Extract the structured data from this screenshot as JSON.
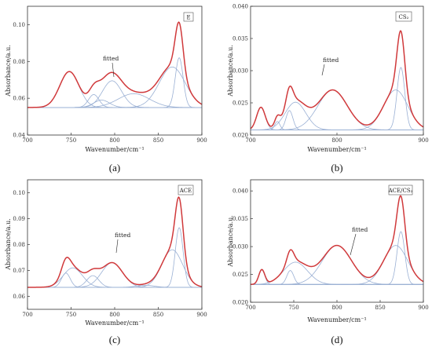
{
  "colors": {
    "fit": "#d0393b",
    "component": "#9ab0d4",
    "baseline": "#8a8a8a",
    "axis": "#333333"
  },
  "chart_data": [
    {
      "type": "line",
      "caption": "(a)",
      "box_label": "E",
      "annotation": "fitted",
      "xlabel": "Wavenumber/cm⁻¹",
      "ylabel": "Absorbance/a.u.",
      "xlim": [
        700,
        900
      ],
      "ylim": [
        0.04,
        0.11
      ],
      "x_ticks": [
        700,
        750,
        800,
        850,
        900
      ],
      "y_ticks": [
        0.04,
        0.06,
        0.08,
        0.1
      ],
      "y_tick_labels": [
        "0.04",
        "0.06",
        "0.08",
        "0.10"
      ],
      "baseline": 0.055,
      "components": [
        {
          "center": 748,
          "height": 0.0195,
          "width": 11
        },
        {
          "center": 776,
          "height": 0.007,
          "width": 6
        },
        {
          "center": 785,
          "height": 0.004,
          "width": 9
        },
        {
          "center": 797,
          "height": 0.0145,
          "width": 11
        },
        {
          "center": 822,
          "height": 0.0075,
          "width": 18
        },
        {
          "center": 866,
          "height": 0.022,
          "width": 15
        },
        {
          "center": 874,
          "height": 0.027,
          "width": 4.5
        }
      ]
    },
    {
      "type": "line",
      "caption": "(b)",
      "box_label": "CS₂",
      "annotation": "fitted",
      "xlabel": "Wavenumber/cm⁻¹",
      "ylabel": "Absorbance/a.u.",
      "xlim": [
        700,
        900
      ],
      "ylim": [
        0.02,
        0.04
      ],
      "x_ticks": [
        700,
        800,
        900
      ],
      "y_ticks": [
        0.02,
        0.025,
        0.03,
        0.035,
        0.04
      ],
      "y_tick_labels": [
        "0.020",
        "0.025",
        "0.030",
        "0.035",
        "0.040"
      ],
      "baseline": 0.0208,
      "components": [
        {
          "center": 712,
          "height": 0.0035,
          "width": 5
        },
        {
          "center": 731,
          "height": 0.0013,
          "width": 3
        },
        {
          "center": 745,
          "height": 0.003,
          "width": 4
        },
        {
          "center": 752,
          "height": 0.0043,
          "width": 12
        },
        {
          "center": 795,
          "height": 0.0062,
          "width": 17
        },
        {
          "center": 868,
          "height": 0.0062,
          "width": 14
        },
        {
          "center": 874,
          "height": 0.0097,
          "width": 4.5
        }
      ]
    },
    {
      "type": "line",
      "caption": "(c)",
      "box_label": "ACE",
      "annotation": "fitted",
      "xlabel": "Wavenumber/cm⁻¹",
      "ylabel": "Absorbance/a.u.",
      "xlim": [
        700,
        900
      ],
      "ylim": [
        0.055,
        0.105
      ],
      "x_ticks": [
        700,
        750,
        800,
        850,
        900
      ],
      "y_ticks": [
        0.06,
        0.07,
        0.08,
        0.09,
        0.1
      ],
      "y_tick_labels": [
        "0.06",
        "0.07",
        "0.08",
        "0.09",
        "0.10"
      ],
      "baseline": 0.0635,
      "components": [
        {
          "center": 744,
          "height": 0.0055,
          "width": 5
        },
        {
          "center": 752,
          "height": 0.0075,
          "width": 11
        },
        {
          "center": 775,
          "height": 0.0045,
          "width": 7
        },
        {
          "center": 797,
          "height": 0.0095,
          "width": 12
        },
        {
          "center": 835,
          "height": 0.0008,
          "width": 10
        },
        {
          "center": 866,
          "height": 0.0145,
          "width": 12
        },
        {
          "center": 874,
          "height": 0.023,
          "width": 4.5
        }
      ]
    },
    {
      "type": "line",
      "caption": "(d)",
      "box_label": "ACE/CS₂",
      "annotation": "fitted",
      "xlabel": "Wavenumber/cm⁻¹",
      "ylabel": "Absorbance/a.u.",
      "xlim": [
        700,
        900
      ],
      "ylim": [
        0.02,
        0.042
      ],
      "x_ticks": [
        700,
        750,
        800,
        850,
        900
      ],
      "y_ticks": [
        0.02,
        0.025,
        0.03,
        0.035,
        0.04
      ],
      "y_tick_labels": [
        "0.020",
        "0.025",
        "0.030",
        "0.035",
        "0.040"
      ],
      "baseline": 0.0232,
      "components": [
        {
          "center": 713,
          "height": 0.0026,
          "width": 3.5
        },
        {
          "center": 746,
          "height": 0.0025,
          "width": 4
        },
        {
          "center": 752,
          "height": 0.004,
          "width": 14
        },
        {
          "center": 800,
          "height": 0.007,
          "width": 17
        },
        {
          "center": 868,
          "height": 0.007,
          "width": 14
        },
        {
          "center": 874,
          "height": 0.0095,
          "width": 4.5
        }
      ]
    }
  ]
}
